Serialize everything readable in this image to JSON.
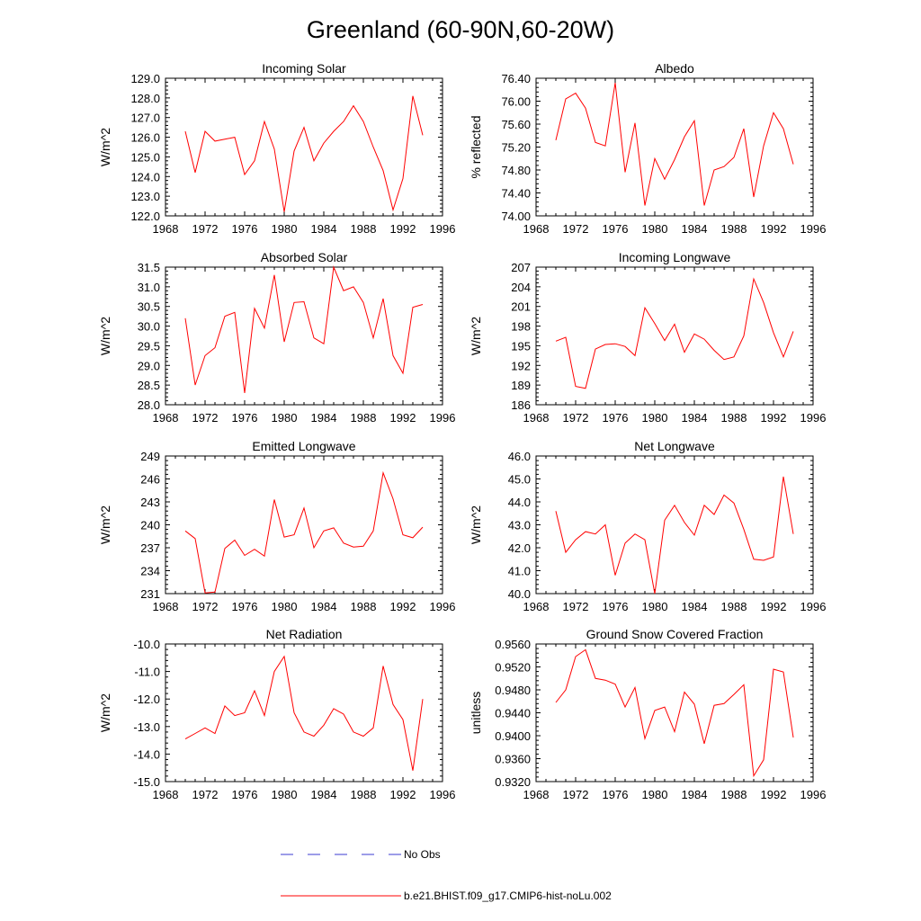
{
  "title": "Greenland (60-90N,60-20W)",
  "colors": {
    "model": "#ff0000",
    "obs": "#3b3bd0",
    "axis": "#000000"
  },
  "legend": {
    "obs_label": "No Obs",
    "model_label": "b.e21.BHIST.f09_g17.CMIP6-hist-noLu.002"
  },
  "chart_data": [
    {
      "type": "line",
      "title": "Incoming Solar",
      "ylabel": "W/m^2",
      "xlabel": "",
      "xlim": [
        1968,
        1996
      ],
      "xticks": [
        1968,
        1972,
        1976,
        1980,
        1984,
        1988,
        1992,
        1996
      ],
      "ylim": [
        122.0,
        129.0
      ],
      "yticks": [
        "122.0",
        "123.0",
        "124.0",
        "125.0",
        "126.0",
        "127.0",
        "128.0",
        "129.0"
      ],
      "x": [
        1970,
        1971,
        1972,
        1973,
        1974,
        1975,
        1976,
        1977,
        1978,
        1979,
        1980,
        1981,
        1982,
        1983,
        1984,
        1985,
        1986,
        1987,
        1988,
        1989,
        1990,
        1991,
        1992,
        1993,
        1994
      ],
      "series": [
        {
          "values": [
            126.3,
            124.2,
            126.3,
            125.8,
            125.9,
            126.0,
            124.1,
            124.8,
            126.8,
            125.4,
            122.2,
            125.3,
            126.5,
            124.8,
            125.7,
            126.3,
            126.8,
            127.6,
            126.8,
            125.5,
            124.3,
            122.3,
            123.9,
            128.1,
            126.1
          ]
        }
      ]
    },
    {
      "type": "line",
      "title": "Albedo",
      "ylabel": "% reflected",
      "xlabel": "",
      "xlim": [
        1968,
        1996
      ],
      "xticks": [
        1968,
        1972,
        1976,
        1980,
        1984,
        1988,
        1992,
        1996
      ],
      "ylim": [
        74.0,
        76.4
      ],
      "yticks": [
        "74.00",
        "74.40",
        "74.80",
        "75.20",
        "75.60",
        "76.00",
        "76.40"
      ],
      "x": [
        1970,
        1971,
        1972,
        1973,
        1974,
        1975,
        1976,
        1977,
        1978,
        1979,
        1980,
        1981,
        1982,
        1983,
        1984,
        1985,
        1986,
        1987,
        1988,
        1989,
        1990,
        1991,
        1992,
        1993,
        1994
      ],
      "series": [
        {
          "values": [
            75.32,
            76.04,
            76.14,
            75.88,
            75.28,
            75.22,
            76.32,
            74.76,
            75.62,
            74.18,
            75.0,
            74.64,
            74.98,
            75.38,
            75.66,
            74.18,
            74.8,
            74.86,
            75.02,
            75.52,
            74.33,
            75.22,
            75.8,
            75.52,
            74.9
          ]
        }
      ]
    },
    {
      "type": "line",
      "title": "Absorbed Solar",
      "ylabel": "W/m^2",
      "xlabel": "",
      "xlim": [
        1968,
        1996
      ],
      "xticks": [
        1968,
        1972,
        1976,
        1980,
        1984,
        1988,
        1992,
        1996
      ],
      "ylim": [
        28.0,
        31.5
      ],
      "yticks": [
        "28.0",
        "28.5",
        "29.0",
        "29.5",
        "30.0",
        "30.5",
        "31.0",
        "31.5"
      ],
      "x": [
        1970,
        1971,
        1972,
        1973,
        1974,
        1975,
        1976,
        1977,
        1978,
        1979,
        1980,
        1981,
        1982,
        1983,
        1984,
        1985,
        1986,
        1987,
        1988,
        1989,
        1990,
        1991,
        1992,
        1993,
        1994
      ],
      "series": [
        {
          "values": [
            30.2,
            28.5,
            29.25,
            29.45,
            30.25,
            30.35,
            28.3,
            30.45,
            29.95,
            31.3,
            29.6,
            30.6,
            30.62,
            29.7,
            29.55,
            31.5,
            30.9,
            31.0,
            30.6,
            29.7,
            30.7,
            29.25,
            28.8,
            30.48,
            30.55
          ]
        }
      ]
    },
    {
      "type": "line",
      "title": "Incoming Longwave",
      "ylabel": "W/m^2",
      "xlabel": "",
      "xlim": [
        1968,
        1996
      ],
      "xticks": [
        1968,
        1972,
        1976,
        1980,
        1984,
        1988,
        1992,
        1996
      ],
      "ylim": [
        186,
        207
      ],
      "yticks": [
        "186",
        "189",
        "192",
        "195",
        "198",
        "201",
        "204",
        "207"
      ],
      "x": [
        1970,
        1971,
        1972,
        1973,
        1974,
        1975,
        1976,
        1977,
        1978,
        1979,
        1980,
        1981,
        1982,
        1983,
        1984,
        1985,
        1986,
        1987,
        1988,
        1989,
        1990,
        1991,
        1992,
        1993,
        1994
      ],
      "series": [
        {
          "values": [
            195.7,
            196.3,
            188.8,
            188.5,
            194.5,
            195.2,
            195.3,
            194.9,
            193.5,
            200.8,
            198.4,
            195.8,
            198.3,
            194.0,
            196.8,
            196.0,
            194.3,
            192.9,
            193.3,
            196.5,
            205.2,
            201.6,
            197.0,
            193.3,
            197.2
          ]
        }
      ]
    },
    {
      "type": "line",
      "title": "Emitted Longwave",
      "ylabel": "W/m^2",
      "xlabel": "",
      "xlim": [
        1968,
        1996
      ],
      "xticks": [
        1968,
        1972,
        1976,
        1980,
        1984,
        1988,
        1992,
        1996
      ],
      "ylim": [
        231,
        249
      ],
      "yticks": [
        "231",
        "234",
        "237",
        "240",
        "243",
        "246",
        "249"
      ],
      "x": [
        1970,
        1971,
        1972,
        1973,
        1974,
        1975,
        1976,
        1977,
        1978,
        1979,
        1980,
        1981,
        1982,
        1983,
        1984,
        1985,
        1986,
        1987,
        1988,
        1989,
        1990,
        1991,
        1992,
        1993,
        1994
      ],
      "series": [
        {
          "values": [
            239.2,
            238.2,
            231.1,
            231.2,
            236.9,
            238.0,
            236.0,
            236.8,
            235.9,
            243.3,
            238.4,
            238.7,
            242.2,
            237.0,
            239.2,
            239.6,
            237.6,
            237.1,
            237.2,
            239.2,
            246.8,
            243.4,
            238.7,
            238.3,
            239.7
          ]
        }
      ]
    },
    {
      "type": "line",
      "title": "Net Longwave",
      "ylabel": "W/m^2",
      "xlabel": "",
      "xlim": [
        1968,
        1996
      ],
      "xticks": [
        1968,
        1972,
        1976,
        1980,
        1984,
        1988,
        1992,
        1996
      ],
      "ylim": [
        40.0,
        46.0
      ],
      "yticks": [
        "40.0",
        "41.0",
        "42.0",
        "43.0",
        "44.0",
        "45.0",
        "46.0"
      ],
      "x": [
        1970,
        1971,
        1972,
        1973,
        1974,
        1975,
        1976,
        1977,
        1978,
        1979,
        1980,
        1981,
        1982,
        1983,
        1984,
        1985,
        1986,
        1987,
        1988,
        1989,
        1990,
        1991,
        1992,
        1993,
        1994
      ],
      "series": [
        {
          "values": [
            43.6,
            41.8,
            42.35,
            42.7,
            42.6,
            43.0,
            40.8,
            42.2,
            42.6,
            42.35,
            40.0,
            43.2,
            43.85,
            43.1,
            42.55,
            43.85,
            43.45,
            44.3,
            43.95,
            42.8,
            41.5,
            41.45,
            41.6,
            45.1,
            42.6
          ]
        }
      ]
    },
    {
      "type": "line",
      "title": "Net Radiation",
      "ylabel": "W/m^2",
      "xlabel": "",
      "xlim": [
        1968,
        1996
      ],
      "xticks": [
        1968,
        1972,
        1976,
        1980,
        1984,
        1988,
        1992,
        1996
      ],
      "ylim": [
        -15.0,
        -10.0
      ],
      "yticks": [
        "-15.0",
        "-14.0",
        "-13.0",
        "-12.0",
        "-11.0",
        "-10.0"
      ],
      "x": [
        1970,
        1971,
        1972,
        1973,
        1974,
        1975,
        1976,
        1977,
        1978,
        1979,
        1980,
        1981,
        1982,
        1983,
        1984,
        1985,
        1986,
        1987,
        1988,
        1989,
        1990,
        1991,
        1992,
        1993,
        1994
      ],
      "series": [
        {
          "values": [
            -13.45,
            -13.25,
            -13.05,
            -13.25,
            -12.25,
            -12.6,
            -12.5,
            -11.7,
            -12.6,
            -11.0,
            -10.45,
            -12.5,
            -13.2,
            -13.35,
            -12.95,
            -12.35,
            -12.55,
            -13.2,
            -13.35,
            -13.05,
            -10.8,
            -12.2,
            -12.75,
            -14.6,
            -12.0
          ]
        }
      ]
    },
    {
      "type": "line",
      "title": "Ground Snow Covered Fraction",
      "ylabel": "unitless",
      "xlabel": "",
      "xlim": [
        1968,
        1996
      ],
      "xticks": [
        1968,
        1972,
        1976,
        1980,
        1984,
        1988,
        1992,
        1996
      ],
      "ylim": [
        0.932,
        0.956
      ],
      "yticks": [
        "0.9320",
        "0.9360",
        "0.9400",
        "0.9440",
        "0.9480",
        "0.9520",
        "0.9560"
      ],
      "x": [
        1970,
        1971,
        1972,
        1973,
        1974,
        1975,
        1976,
        1977,
        1978,
        1979,
        1980,
        1981,
        1982,
        1983,
        1984,
        1985,
        1986,
        1987,
        1988,
        1989,
        1990,
        1991,
        1992,
        1993,
        1994
      ],
      "series": [
        {
          "values": [
            0.9458,
            0.948,
            0.9538,
            0.955,
            0.95,
            0.9497,
            0.949,
            0.945,
            0.9484,
            0.9395,
            0.9444,
            0.945,
            0.9407,
            0.9476,
            0.9455,
            0.9386,
            0.9453,
            0.9456,
            0.9472,
            0.9489,
            0.933,
            0.9358,
            0.9516,
            0.9511,
            0.9397
          ]
        }
      ]
    }
  ]
}
